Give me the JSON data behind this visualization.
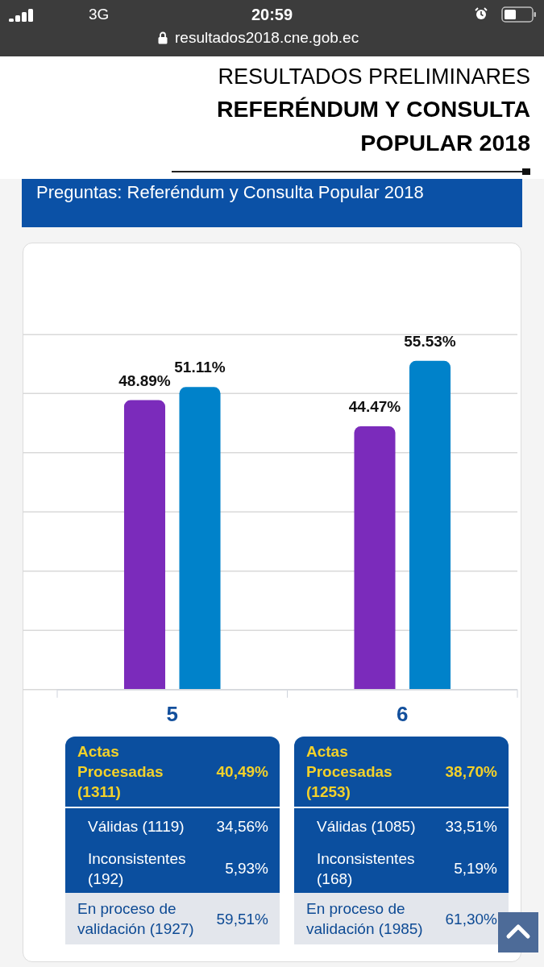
{
  "chart_data": [
    {
      "type": "bar",
      "title": "RESULTADOS PRELIMINARES\nREFERÉNDUM Y CONSULTA POPULAR 2018",
      "subtitle": "Preguntas: Referéndum y Consulta Popular 2018",
      "annotations": [
        "3G",
        "20:59",
        "resultados2018.cne.gob.ec"
      ],
      "categories": [
        "5",
        "6"
      ],
      "series": [
        {
          "color": "#7b2bbb",
          "values": [
            48.89,
            44.47
          ],
          "value_labels": [
            "48.89%",
            "44.47%"
          ]
        },
        {
          "color": "#0082ca",
          "values": [
            51.11,
            55.53
          ],
          "value_labels": [
            "51.11%",
            "55.53%"
          ]
        }
      ],
      "ylim": [
        0,
        60
      ],
      "yticks": [
        {
          "value": 0,
          "label": null
        },
        {
          "value": 10,
          "label": null
        },
        {
          "value": 20,
          "label": null
        },
        {
          "value": 30,
          "label": null
        },
        {
          "value": 40,
          "label": null
        },
        {
          "value": 50,
          "label": null
        },
        {
          "value": 60,
          "label": null
        }
      ],
      "grid": "y",
      "tick_labels": "x"
    },
    {
      "type": "other",
      "annotations": [
        "Actas Procesadas (1311)",
        "40,49%",
        "Válidas (1119)",
        "34,56%",
        "Inconsistentes (192)",
        "5,93%",
        "En proceso de validación (1927)",
        "59,51%"
      ]
    },
    {
      "type": "other",
      "annotations": [
        "Actas Procesadas (1253)",
        "38,70%",
        "Válidas (1085)",
        "33,51%",
        "Inconsistentes (168)",
        "5,19%",
        "En proceso de validación (1985)",
        "61,30%"
      ]
    }
  ]
}
